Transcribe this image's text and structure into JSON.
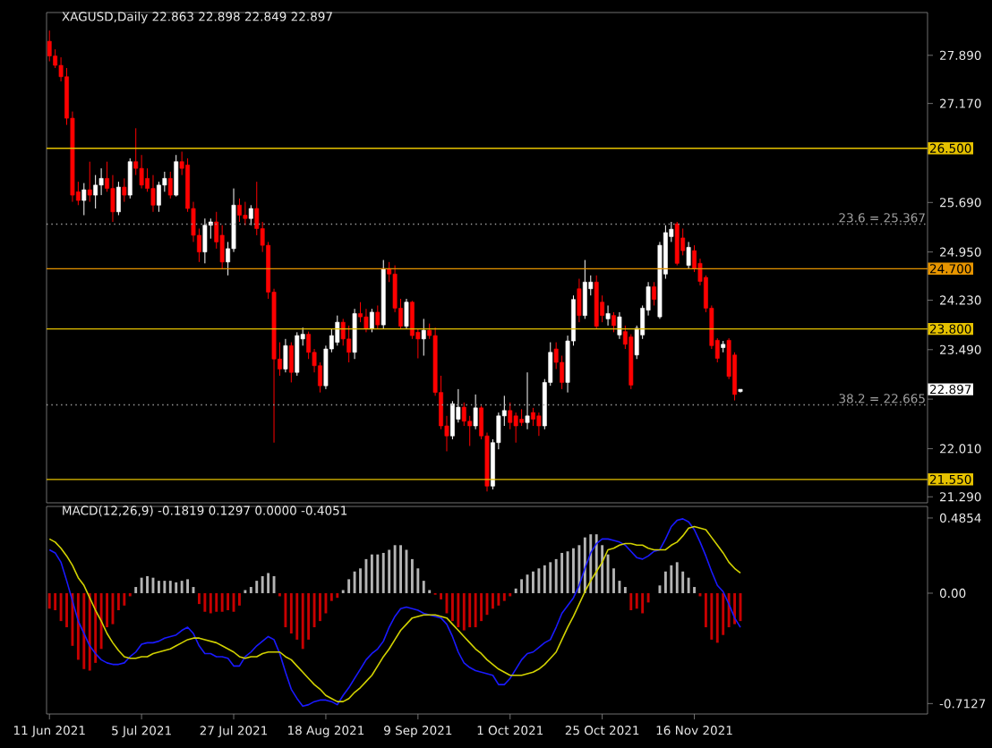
{
  "chart_data": [
    {
      "type": "candlestick",
      "title": "XAGUSD,Daily  22.863 22.898 22.849 22.897",
      "tick_labels": "y",
      "categories": [
        null,
        null,
        null,
        null,
        null,
        null,
        null,
        null,
        null,
        null,
        null,
        null,
        null,
        null,
        null,
        null,
        null,
        null,
        null,
        null,
        null,
        null,
        null,
        null,
        null,
        null,
        null,
        null,
        null,
        null,
        null,
        null,
        null,
        null,
        null,
        null,
        null,
        null,
        null,
        null,
        null,
        null,
        null,
        null,
        null,
        null,
        null,
        null,
        null,
        null,
        null,
        null,
        null,
        null,
        null,
        null,
        null,
        null,
        null,
        null,
        null,
        null,
        null,
        null,
        null,
        null,
        null,
        null,
        null,
        null,
        null,
        null,
        null,
        null,
        null,
        null,
        null,
        null,
        null,
        null,
        null,
        null,
        null,
        null,
        null,
        null,
        null,
        null,
        null,
        null,
        null,
        null,
        null,
        null,
        null,
        null,
        null,
        null,
        null,
        null,
        null,
        null,
        null,
        null,
        null,
        null,
        null,
        null,
        null,
        null,
        null,
        null,
        null,
        null,
        null,
        null,
        null,
        null,
        null,
        null,
        null,
        null,
        null,
        null,
        null,
        null,
        null,
        null,
        null,
        null,
        null,
        null,
        null,
        null,
        null,
        null,
        null,
        null,
        null,
        null,
        null,
        null,
        null,
        null,
        null,
        null,
        null,
        null,
        null,
        null,
        null,
        null,
        null
      ],
      "ohlc": [
        [
          28.1,
          28.26,
          27.8,
          27.88
        ],
        [
          27.88,
          27.98,
          27.7,
          27.74
        ],
        [
          27.74,
          27.86,
          27.5,
          27.57
        ],
        [
          27.57,
          27.7,
          26.85,
          26.95
        ],
        [
          26.95,
          27.05,
          25.7,
          25.8
        ],
        [
          25.85,
          26.0,
          25.65,
          25.72
        ],
        [
          25.72,
          25.98,
          25.5,
          25.88
        ],
        [
          25.88,
          26.3,
          25.7,
          25.8
        ],
        [
          25.8,
          26.1,
          25.6,
          25.95
        ],
        [
          25.95,
          26.2,
          25.8,
          26.05
        ],
        [
          26.05,
          26.3,
          25.85,
          25.9
        ],
        [
          25.9,
          26.1,
          25.4,
          25.55
        ],
        [
          25.55,
          26.0,
          25.5,
          25.92
        ],
        [
          25.92,
          26.05,
          25.7,
          25.8
        ],
        [
          25.8,
          26.35,
          25.75,
          26.3
        ],
        [
          26.3,
          26.8,
          26.1,
          26.2
        ],
        [
          26.2,
          26.4,
          25.9,
          25.95
        ],
        [
          26.05,
          26.2,
          25.85,
          25.9
        ],
        [
          25.9,
          26.1,
          25.55,
          25.65
        ],
        [
          25.65,
          26.0,
          25.55,
          25.95
        ],
        [
          25.95,
          26.15,
          25.85,
          26.05
        ],
        [
          26.05,
          26.15,
          25.75,
          25.8
        ],
        [
          25.8,
          26.4,
          25.78,
          26.3
        ],
        [
          26.3,
          26.45,
          26.1,
          26.2
        ],
        [
          26.25,
          26.35,
          25.55,
          25.6
        ],
        [
          25.6,
          25.7,
          25.1,
          25.2
        ],
        [
          25.2,
          25.3,
          24.8,
          24.95
        ],
        [
          24.95,
          25.45,
          24.78,
          25.35
        ],
        [
          25.35,
          25.45,
          25.15,
          25.4
        ],
        [
          25.4,
          25.55,
          25.0,
          25.1
        ],
        [
          25.2,
          25.35,
          24.7,
          24.8
        ],
        [
          24.8,
          25.1,
          24.6,
          25.0
        ],
        [
          25.0,
          25.9,
          24.95,
          25.65
        ],
        [
          25.65,
          25.75,
          25.4,
          25.5
        ],
        [
          25.5,
          25.7,
          25.35,
          25.45
        ],
        [
          25.45,
          25.65,
          25.35,
          25.6
        ],
        [
          25.6,
          26.0,
          25.2,
          25.3
        ],
        [
          25.3,
          25.4,
          24.95,
          25.05
        ],
        [
          25.05,
          25.1,
          24.25,
          24.35
        ],
        [
          24.35,
          24.4,
          22.1,
          23.35
        ],
        [
          23.35,
          23.6,
          23.1,
          23.2
        ],
        [
          23.2,
          23.65,
          23.15,
          23.55
        ],
        [
          23.55,
          23.6,
          23.0,
          23.15
        ],
        [
          23.15,
          23.75,
          23.1,
          23.7
        ],
        [
          23.65,
          23.82,
          23.55,
          23.72
        ],
        [
          23.72,
          23.76,
          23.35,
          23.45
        ],
        [
          23.45,
          23.5,
          23.15,
          23.25
        ],
        [
          23.25,
          23.3,
          22.85,
          22.95
        ],
        [
          22.95,
          23.55,
          22.9,
          23.5
        ],
        [
          23.5,
          23.8,
          23.45,
          23.7
        ],
        [
          23.6,
          24.0,
          23.55,
          23.9
        ],
        [
          23.9,
          23.95,
          23.55,
          23.65
        ],
        [
          23.65,
          23.85,
          23.3,
          23.45
        ],
        [
          23.45,
          24.1,
          23.35,
          24.03
        ],
        [
          24.03,
          24.2,
          23.9,
          23.98
        ],
        [
          23.98,
          24.1,
          23.75,
          23.8
        ],
        [
          23.8,
          24.1,
          23.75,
          24.05
        ],
        [
          24.05,
          24.15,
          23.8,
          23.86
        ],
        [
          23.86,
          24.83,
          23.8,
          24.7
        ],
        [
          24.7,
          24.8,
          24.5,
          24.62
        ],
        [
          24.62,
          24.75,
          24.05,
          24.11
        ],
        [
          24.11,
          24.25,
          23.8,
          23.84
        ],
        [
          23.84,
          24.25,
          23.8,
          24.2
        ],
        [
          24.2,
          24.22,
          23.65,
          23.7
        ],
        [
          23.75,
          23.8,
          23.36,
          23.65
        ],
        [
          23.65,
          23.95,
          23.4,
          23.78
        ],
        [
          23.78,
          23.88,
          23.65,
          23.7
        ],
        [
          23.7,
          23.82,
          22.8,
          22.85
        ],
        [
          22.85,
          23.1,
          22.3,
          22.35
        ],
        [
          22.35,
          22.5,
          21.97,
          22.2
        ],
        [
          22.2,
          22.72,
          22.15,
          22.68
        ],
        [
          22.45,
          22.9,
          22.4,
          22.63
        ],
        [
          22.63,
          22.7,
          22.35,
          22.42
        ],
        [
          22.42,
          22.5,
          22.05,
          22.35
        ],
        [
          22.35,
          22.82,
          22.3,
          22.62
        ],
        [
          22.62,
          22.65,
          22.15,
          22.2
        ],
        [
          22.2,
          22.25,
          21.37,
          21.45
        ],
        [
          21.45,
          22.15,
          21.4,
          22.1
        ],
        [
          22.1,
          22.55,
          22.0,
          22.5
        ],
        [
          22.5,
          22.8,
          22.35,
          22.58
        ],
        [
          22.58,
          22.7,
          22.3,
          22.4
        ],
        [
          22.5,
          22.55,
          22.1,
          22.35
        ],
        [
          22.45,
          22.6,
          22.35,
          22.4
        ],
        [
          22.4,
          23.15,
          22.3,
          22.5
        ],
        [
          22.55,
          22.62,
          22.35,
          22.45
        ],
        [
          22.5,
          22.55,
          22.2,
          22.35
        ],
        [
          22.35,
          23.05,
          22.3,
          23.0
        ],
        [
          23.0,
          23.6,
          22.95,
          23.45
        ],
        [
          23.5,
          23.6,
          23.2,
          23.3
        ],
        [
          23.3,
          23.4,
          22.9,
          23.0
        ],
        [
          23.0,
          23.7,
          22.85,
          23.62
        ],
        [
          23.62,
          24.3,
          23.55,
          24.24
        ],
        [
          24.4,
          24.55,
          23.9,
          24.0
        ],
        [
          24.0,
          24.83,
          23.95,
          24.5
        ],
        [
          24.4,
          24.6,
          24.3,
          24.5
        ],
        [
          24.5,
          24.6,
          23.8,
          23.84
        ],
        [
          24.2,
          24.3,
          23.9,
          24.0
        ],
        [
          23.95,
          24.15,
          23.85,
          24.03
        ],
        [
          24.0,
          24.05,
          23.75,
          23.85
        ],
        [
          23.71,
          24.05,
          23.65,
          23.98
        ],
        [
          23.76,
          23.85,
          23.5,
          23.57
        ],
        [
          23.68,
          23.72,
          22.9,
          22.96
        ],
        [
          23.41,
          23.85,
          23.35,
          23.81
        ],
        [
          23.71,
          24.15,
          23.65,
          24.11
        ],
        [
          24.08,
          24.5,
          24.0,
          24.43
        ],
        [
          24.43,
          24.5,
          24.15,
          24.24
        ],
        [
          23.98,
          25.1,
          23.95,
          25.05
        ],
        [
          24.62,
          25.35,
          24.55,
          25.24
        ],
        [
          25.18,
          25.4,
          25.1,
          25.29
        ],
        [
          25.37,
          25.4,
          24.75,
          24.78
        ],
        [
          25.16,
          25.3,
          24.9,
          24.97
        ],
        [
          24.75,
          25.1,
          24.7,
          25.02
        ],
        [
          24.97,
          25.05,
          24.65,
          24.7
        ],
        [
          24.78,
          24.85,
          24.45,
          24.51
        ],
        [
          24.57,
          24.6,
          24.05,
          24.11
        ],
        [
          24.11,
          24.15,
          23.5,
          23.55
        ],
        [
          23.63,
          23.66,
          23.3,
          23.36
        ],
        [
          23.52,
          23.62,
          23.45,
          23.57
        ],
        [
          23.63,
          23.66,
          23.05,
          23.09
        ],
        [
          23.41,
          23.45,
          22.73,
          22.82
        ],
        [
          22.863,
          22.898,
          22.849,
          22.897
        ],
        null,
        null,
        null,
        null,
        null,
        null,
        null,
        null,
        null,
        null,
        null,
        null,
        null,
        null,
        null,
        null,
        null,
        null,
        null,
        null,
        null,
        null,
        null,
        null,
        null,
        null,
        null,
        null,
        null,
        null,
        null,
        null
      ],
      "ylim": [
        21.2,
        28.53
      ],
      "yticks": [
        {
          "value": 27.89,
          "label": "27.890"
        },
        {
          "value": 27.17,
          "label": "27.170"
        },
        {
          "value": 26.43,
          "label": null
        },
        {
          "value": 25.69,
          "label": "25.690"
        },
        {
          "value": 24.95,
          "label": "24.950"
        },
        {
          "value": 24.23,
          "label": "24.230"
        },
        {
          "value": 23.49,
          "label": "23.490"
        },
        {
          "value": 22.75,
          "label": null
        },
        {
          "value": 22.01,
          "label": "22.010"
        },
        {
          "value": 21.29,
          "label": "21.290"
        }
      ],
      "ref_lines": [
        {
          "axis": "y",
          "value": 26.5,
          "label": "26.500",
          "color": "#e6c200",
          "line_style": "solid"
        },
        {
          "axis": "y",
          "value": 25.367,
          "label": "23.6 = 25.367",
          "color": "#a0a0a0",
          "line_style": "dotted"
        },
        {
          "axis": "y",
          "value": 24.7,
          "label": "24.700",
          "color": "#e69500",
          "line_style": "solid"
        },
        {
          "axis": "y",
          "value": 23.8,
          "label": "23.800",
          "color": "#e6c200",
          "line_style": "solid"
        },
        {
          "axis": "y",
          "value": 22.665,
          "label": "38.2 = 22.665",
          "color": "#a0a0a0",
          "line_style": "dotted"
        },
        {
          "axis": "y",
          "value": 21.55,
          "label": "21.550",
          "color": "#e6c200",
          "line_style": "solid"
        }
      ],
      "annotations": [
        "22.897"
      ]
    },
    {
      "type": "bar",
      "title": "MACD(12,26,9) -0.1819 0.1297 0.0000 -0.4051",
      "categories": [
        "11 Jun 2021",
        null,
        null,
        null,
        null,
        null,
        null,
        null,
        null,
        null,
        null,
        null,
        null,
        null,
        null,
        null,
        "5 Jul 2021",
        null,
        null,
        null,
        null,
        null,
        null,
        null,
        null,
        null,
        null,
        null,
        null,
        null,
        null,
        null,
        "27 Jul 2021",
        null,
        null,
        null,
        null,
        null,
        null,
        null,
        null,
        null,
        null,
        null,
        null,
        null,
        null,
        null,
        "18 Aug 2021",
        null,
        null,
        null,
        null,
        null,
        null,
        null,
        null,
        null,
        null,
        null,
        null,
        null,
        null,
        null,
        "9 Sep 2021",
        null,
        null,
        null,
        null,
        null,
        null,
        null,
        null,
        null,
        null,
        null,
        null,
        null,
        null,
        null,
        "1 Oct 2021",
        null,
        null,
        null,
        null,
        null,
        null,
        null,
        null,
        null,
        null,
        null,
        null,
        null,
        null,
        null,
        "25 Oct 2021",
        null,
        null,
        null,
        null,
        null,
        null,
        null,
        null,
        null,
        null,
        null,
        null,
        null,
        null,
        null,
        "16 Nov 2021",
        null,
        null,
        null,
        null,
        null,
        null,
        null,
        null,
        null,
        null,
        null,
        null,
        null,
        null,
        null,
        null,
        null,
        null,
        null,
        null,
        null,
        null,
        null,
        null,
        null,
        null,
        null,
        null,
        null,
        null,
        null,
        null,
        null,
        null,
        null,
        null,
        null,
        null,
        null,
        null
      ],
      "ylim": [
        -0.78,
        0.56
      ],
      "yticks": [
        {
          "value": 0.4854,
          "label": "0.4854"
        },
        {
          "value": 0,
          "label": "0.00"
        },
        {
          "value": -0.7127,
          "label": "-0.7127"
        }
      ],
      "series": [
        {
          "type": "bar",
          "color": "#b4b4b4",
          "values": [
            null,
            null,
            null,
            null,
            null,
            null,
            null,
            null,
            null,
            null,
            null,
            null,
            null,
            null,
            null,
            0.04,
            0.1,
            0.11,
            0.1,
            0.08,
            0.08,
            0.08,
            0.07,
            0.08,
            0.09,
            0.04,
            null,
            null,
            null,
            null,
            null,
            null,
            null,
            null,
            0.02,
            0.04,
            0.08,
            0.11,
            0.13,
            0.11,
            null,
            null,
            null,
            null,
            null,
            null,
            null,
            null,
            null,
            null,
            null,
            0.02,
            0.09,
            0.14,
            0.16,
            0.22,
            0.25,
            0.25,
            0.26,
            0.28,
            0.31,
            0.31,
            0.28,
            0.22,
            0.16,
            0.08,
            0.02,
            null,
            null,
            null,
            null,
            null,
            null,
            null,
            null,
            null,
            null,
            null,
            null,
            null,
            null,
            0.03,
            0.09,
            0.12,
            0.14,
            0.16,
            0.18,
            0.2,
            0.22,
            0.26,
            0.27,
            0.29,
            0.31,
            0.36,
            0.38,
            0.38,
            0.31,
            0.25,
            0.16,
            0.08,
            0.04,
            null,
            null,
            null,
            null,
            null,
            0.05,
            0.14,
            0.18,
            0.2,
            0.14,
            0.1,
            0.04,
            null,
            null,
            null,
            null,
            null,
            null,
            null,
            null,
            null,
            null,
            null,
            null,
            null,
            null,
            null,
            null,
            null,
            null,
            null,
            null,
            null,
            null,
            null,
            null,
            null,
            null,
            null,
            null,
            null,
            null,
            null,
            null,
            null,
            null,
            null,
            null,
            null,
            null,
            null,
            null
          ]
        },
        {
          "type": "bar",
          "color": "#c80000",
          "values": [
            -0.1,
            -0.11,
            -0.18,
            -0.22,
            -0.34,
            -0.43,
            -0.49,
            -0.5,
            -0.45,
            -0.36,
            -0.22,
            -0.2,
            -0.11,
            -0.08,
            -0.02,
            null,
            null,
            null,
            null,
            null,
            null,
            null,
            null,
            null,
            null,
            null,
            -0.07,
            -0.12,
            -0.13,
            -0.12,
            -0.12,
            -0.11,
            -0.12,
            -0.08,
            null,
            null,
            null,
            null,
            null,
            null,
            -0.02,
            -0.22,
            -0.26,
            -0.3,
            -0.36,
            -0.3,
            -0.22,
            -0.18,
            -0.13,
            -0.05,
            -0.03,
            null,
            null,
            null,
            null,
            null,
            null,
            null,
            null,
            null,
            null,
            null,
            null,
            null,
            null,
            null,
            null,
            -0.01,
            -0.04,
            -0.13,
            -0.18,
            -0.22,
            -0.24,
            -0.22,
            -0.22,
            -0.18,
            -0.14,
            -0.1,
            -0.08,
            -0.05,
            -0.02,
            null,
            null,
            null,
            null,
            null,
            null,
            null,
            null,
            null,
            null,
            null,
            null,
            null,
            null,
            null,
            null,
            null,
            null,
            null,
            null,
            -0.11,
            -0.1,
            -0.13,
            -0.06,
            null,
            null,
            null,
            null,
            null,
            null,
            null,
            null,
            -0.02,
            -0.22,
            -0.3,
            -0.32,
            -0.27,
            -0.22,
            -0.2,
            -0.18,
            null,
            null,
            null,
            null,
            null,
            null,
            null,
            null,
            null,
            null,
            null,
            null,
            null,
            null,
            null,
            null,
            null,
            null,
            null,
            null,
            null,
            null,
            null,
            null,
            null,
            null,
            null,
            null,
            null,
            null,
            null,
            null
          ]
        },
        {
          "type": "line",
          "color": "#1a1aff",
          "values": [
            0.28,
            0.26,
            0.2,
            0.08,
            -0.05,
            -0.18,
            -0.26,
            -0.34,
            -0.39,
            -0.43,
            -0.45,
            -0.46,
            -0.46,
            -0.45,
            -0.41,
            -0.38,
            -0.33,
            -0.32,
            -0.32,
            -0.31,
            -0.29,
            -0.28,
            -0.27,
            -0.24,
            -0.22,
            -0.26,
            -0.34,
            -0.39,
            -0.39,
            -0.41,
            -0.41,
            -0.42,
            -0.47,
            -0.47,
            -0.41,
            -0.38,
            -0.34,
            -0.31,
            -0.28,
            -0.3,
            -0.39,
            -0.51,
            -0.62,
            -0.68,
            -0.73,
            -0.72,
            -0.7,
            -0.69,
            -0.69,
            -0.7,
            -0.72,
            -0.66,
            -0.61,
            -0.55,
            -0.49,
            -0.43,
            -0.39,
            -0.36,
            -0.31,
            -0.22,
            -0.15,
            -0.1,
            -0.09,
            -0.1,
            -0.11,
            -0.13,
            -0.14,
            -0.15,
            -0.16,
            -0.2,
            -0.28,
            -0.38,
            -0.45,
            -0.48,
            -0.5,
            -0.51,
            -0.52,
            -0.53,
            -0.59,
            -0.59,
            -0.55,
            -0.49,
            -0.43,
            -0.39,
            -0.38,
            -0.35,
            -0.32,
            -0.3,
            -0.22,
            -0.13,
            -0.08,
            -0.03,
            0.05,
            0.16,
            0.26,
            0.32,
            0.35,
            0.35,
            0.34,
            0.33,
            0.31,
            0.27,
            0.23,
            0.22,
            0.24,
            0.27,
            0.28,
            0.35,
            0.43,
            0.47,
            0.48,
            0.46,
            0.41,
            0.33,
            0.24,
            0.14,
            0.05,
            0.01,
            -0.07,
            -0.16,
            -0.22,
            null,
            null,
            null,
            null,
            null,
            null,
            null,
            null,
            null,
            null,
            null,
            null,
            null,
            null,
            null,
            null,
            null,
            null,
            null,
            null,
            null,
            null,
            null,
            null,
            null,
            null,
            null,
            null,
            null,
            null,
            null,
            null
          ]
        },
        {
          "type": "line",
          "color": "#d2d200",
          "values": [
            0.35,
            0.33,
            0.29,
            0.24,
            0.18,
            0.1,
            0.05,
            -0.03,
            -0.11,
            -0.18,
            -0.26,
            -0.32,
            -0.37,
            -0.41,
            -0.42,
            -0.42,
            -0.41,
            -0.41,
            -0.39,
            -0.38,
            -0.37,
            -0.36,
            -0.34,
            -0.32,
            -0.3,
            -0.29,
            -0.29,
            -0.3,
            -0.31,
            -0.32,
            -0.34,
            -0.36,
            -0.38,
            -0.41,
            -0.42,
            -0.41,
            -0.41,
            -0.39,
            -0.38,
            -0.38,
            -0.38,
            -0.41,
            -0.43,
            -0.47,
            -0.51,
            -0.55,
            -0.59,
            -0.62,
            -0.66,
            -0.68,
            -0.7,
            -0.7,
            -0.68,
            -0.64,
            -0.61,
            -0.57,
            -0.53,
            -0.47,
            -0.41,
            -0.36,
            -0.3,
            -0.24,
            -0.2,
            -0.16,
            -0.15,
            -0.14,
            -0.14,
            -0.14,
            -0.15,
            -0.16,
            -0.2,
            -0.24,
            -0.28,
            -0.32,
            -0.36,
            -0.39,
            -0.43,
            -0.46,
            -0.49,
            -0.51,
            -0.53,
            -0.53,
            -0.53,
            -0.52,
            -0.51,
            -0.49,
            -0.46,
            -0.42,
            -0.38,
            -0.3,
            -0.22,
            -0.15,
            -0.07,
            0.01,
            0.08,
            0.14,
            0.2,
            0.28,
            0.29,
            0.31,
            0.32,
            0.32,
            0.31,
            0.31,
            0.29,
            0.28,
            0.28,
            0.28,
            0.31,
            0.33,
            0.37,
            0.42,
            0.43,
            0.42,
            0.41,
            0.36,
            0.31,
            0.26,
            0.2,
            0.16,
            0.13,
            null,
            null,
            null,
            null,
            null,
            null,
            null,
            null,
            null,
            null,
            null,
            null,
            null,
            null,
            null,
            null,
            null,
            null,
            null,
            null,
            null,
            null,
            null,
            null,
            null,
            null,
            null,
            null,
            null,
            null,
            null,
            null
          ]
        }
      ]
    }
  ]
}
